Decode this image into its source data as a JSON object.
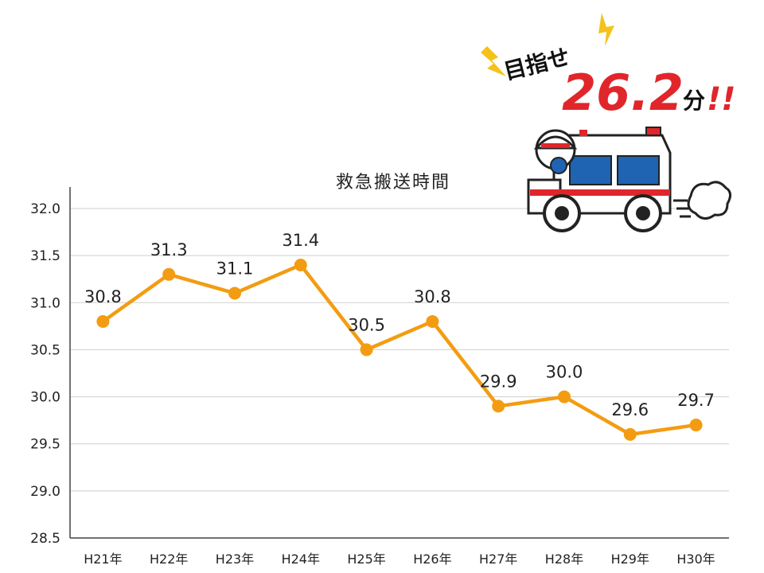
{
  "goal": {
    "prefix": "目指せ",
    "value": "26.2",
    "unit": "分",
    "suffix": "!!"
  },
  "chart_data": {
    "type": "line",
    "title": "救急搬送時間",
    "categories": [
      "H21年",
      "H22年",
      "H23年",
      "H24年",
      "H25年",
      "H26年",
      "H27年",
      "H28年",
      "H29年",
      "H30年"
    ],
    "values": [
      30.8,
      31.3,
      31.1,
      31.4,
      30.5,
      30.8,
      29.9,
      30.0,
      29.6,
      29.7
    ],
    "data_labels": [
      "30.8",
      "31.3",
      "31.1",
      "31.4",
      "30.5",
      "30.8",
      "29.9",
      "30.0",
      "29.6",
      "29.7"
    ],
    "yticks": [
      "28.5",
      "29.0",
      "29.5",
      "30.0",
      "30.5",
      "31.0",
      "31.5",
      "32.0"
    ],
    "ylim": [
      28.5,
      32.0
    ],
    "grid": true,
    "line_color": "#f39c12"
  }
}
